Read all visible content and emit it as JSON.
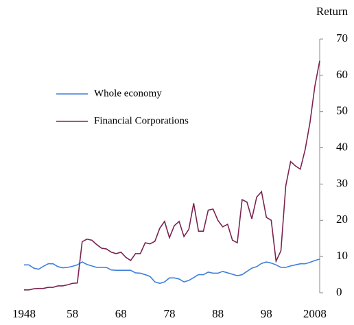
{
  "chart_data": {
    "type": "line",
    "y_label": "Return",
    "x": [
      1948,
      1949,
      1950,
      1951,
      1952,
      1953,
      1954,
      1955,
      1956,
      1957,
      1958,
      1959,
      1960,
      1961,
      1962,
      1963,
      1964,
      1965,
      1966,
      1967,
      1968,
      1969,
      1970,
      1971,
      1972,
      1973,
      1974,
      1975,
      1976,
      1977,
      1978,
      1979,
      1980,
      1981,
      1982,
      1983,
      1984,
      1985,
      1986,
      1987,
      1988,
      1989,
      1990,
      1991,
      1992,
      1993,
      1994,
      1995,
      1996,
      1997,
      1998,
      1999,
      2000,
      2001,
      2002,
      2003,
      2004,
      2005,
      2006,
      2007,
      2008,
      2009
    ],
    "series": [
      {
        "name": "Whole economy",
        "color": "#3f7fdb",
        "values": [
          7.7,
          7.7,
          6.8,
          6.5,
          7.3,
          8,
          8,
          7.2,
          6.9,
          7,
          7.3,
          7.7,
          8.5,
          7.8,
          7.4,
          7,
          7,
          7,
          6.3,
          6.2,
          6.2,
          6.2,
          6.2,
          5.5,
          5.4,
          5,
          4.5,
          3,
          2.6,
          3,
          4.1,
          4.1,
          3.8,
          3,
          3.4,
          4.2,
          5,
          5,
          5.7,
          5.4,
          5.4,
          5.9,
          5.5,
          5.1,
          4.7,
          5,
          5.9,
          6.8,
          7.2,
          8.1,
          8.5,
          8.2,
          7.7,
          7,
          7,
          7.4,
          7.7,
          8,
          8,
          8.4,
          8.9,
          9.3
        ]
      },
      {
        "name": "Financial Corporations",
        "color": "#7b2350",
        "values": [
          0.8,
          0.8,
          1.1,
          1.2,
          1.2,
          1.5,
          1.5,
          1.9,
          1.9,
          2.2,
          2.6,
          2.7,
          14.1,
          14.8,
          14.5,
          13.3,
          12.3,
          12.1,
          11.2,
          10.8,
          11.2,
          9.8,
          8.9,
          10.8,
          10.8,
          13.8,
          13.5,
          14.2,
          17.8,
          19.7,
          15.2,
          18.5,
          19.7,
          15.5,
          17.5,
          24.7,
          17,
          17,
          22.8,
          23.1,
          20,
          18.2,
          18.9,
          14.5,
          13.8,
          25.7,
          25,
          20.4,
          26.4,
          27.9,
          20.8,
          20,
          8.7,
          11.6,
          29.5,
          36.2,
          35,
          34.1,
          39.5,
          47,
          57,
          64
        ]
      }
    ],
    "xlim": [
      1948,
      2009
    ],
    "xticks": [
      1948,
      {
        "value": 1958,
        "label": "58"
      },
      {
        "value": 1968,
        "label": "68"
      },
      {
        "value": 1978,
        "label": "78"
      },
      {
        "value": 1988,
        "label": "88"
      },
      {
        "value": 1998,
        "label": "98"
      },
      2008
    ],
    "ylim": [
      0,
      70
    ],
    "yticks": [
      0,
      10,
      20,
      30,
      40,
      50,
      60,
      70
    ],
    "y_axis_side": "right",
    "legend": "left"
  }
}
